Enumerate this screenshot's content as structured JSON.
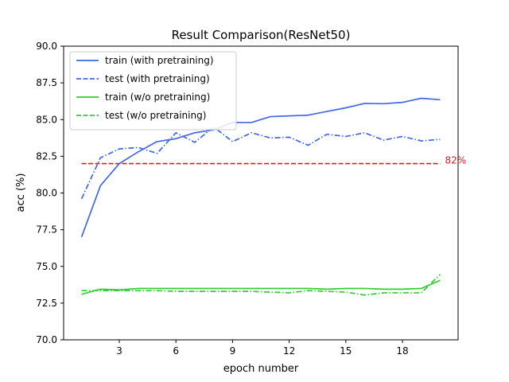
{
  "chart_data": {
    "type": "line",
    "title": "Result Comparison(ResNet50)",
    "xlabel": "epoch number",
    "ylabel": "acc (%)",
    "xlim": [
      0.05,
      20.95
    ],
    "ylim": [
      70.0,
      90.0
    ],
    "xticks": [
      3,
      6,
      9,
      12,
      15,
      18
    ],
    "yticks": [
      70.0,
      72.5,
      75.0,
      77.5,
      80.0,
      82.5,
      85.0,
      87.5,
      90.0
    ],
    "grid": false,
    "legend_position": "top-left",
    "x": [
      1,
      2,
      3,
      4,
      5,
      6,
      7,
      8,
      9,
      10,
      11,
      12,
      13,
      14,
      15,
      16,
      17,
      18,
      19,
      20
    ],
    "series": [
      {
        "name": "train (with pretraining)",
        "color": "#4169e1",
        "dash": "solid",
        "values": [
          77.0,
          80.5,
          82.0,
          82.8,
          83.5,
          83.7,
          84.1,
          84.3,
          84.8,
          84.8,
          85.2,
          85.25,
          85.3,
          85.55,
          85.8,
          86.1,
          86.08,
          86.17,
          86.45,
          86.35
        ]
      },
      {
        "name": "test (with pretraining)",
        "color": "#4169e1",
        "dash": "dashdot",
        "values": [
          79.6,
          82.4,
          83.0,
          83.1,
          82.7,
          84.1,
          83.45,
          84.5,
          83.5,
          84.1,
          83.75,
          83.8,
          83.25,
          84.0,
          83.85,
          84.1,
          83.6,
          83.85,
          83.55,
          83.65
        ]
      },
      {
        "name": "train (w/o pretraining)",
        "color": "#32cd32",
        "dash": "solid",
        "values": [
          73.1,
          73.45,
          73.4,
          73.5,
          73.5,
          73.5,
          73.5,
          73.5,
          73.5,
          73.5,
          73.5,
          73.5,
          73.5,
          73.45,
          73.5,
          73.5,
          73.45,
          73.45,
          73.5,
          74.05
        ]
      },
      {
        "name": "test (w/o pretraining)",
        "color": "#32cd32",
        "dash": "dashdot",
        "values": [
          73.35,
          73.35,
          73.35,
          73.35,
          73.35,
          73.3,
          73.3,
          73.3,
          73.3,
          73.3,
          73.25,
          73.2,
          73.35,
          73.3,
          73.25,
          73.05,
          73.2,
          73.2,
          73.2,
          74.45
        ]
      }
    ],
    "legend_entries": [
      {
        "name": "train (with pretraining)",
        "color": "#4169e1",
        "dash": "solid"
      },
      {
        "name": "test (with pretraining)",
        "color": "#4169e1",
        "dash": "dashed"
      },
      {
        "name": "train (w/o pretraining)",
        "color": "#32cd32",
        "dash": "solid"
      },
      {
        "name": "test (w/o pretraining)",
        "color": "#32cd32",
        "dash": "dashed"
      }
    ],
    "reference_line": {
      "y": 82.0,
      "x_start": 1,
      "x_end": 20,
      "color": "#e31a1c",
      "dash": "dashed",
      "label": "82%"
    }
  }
}
